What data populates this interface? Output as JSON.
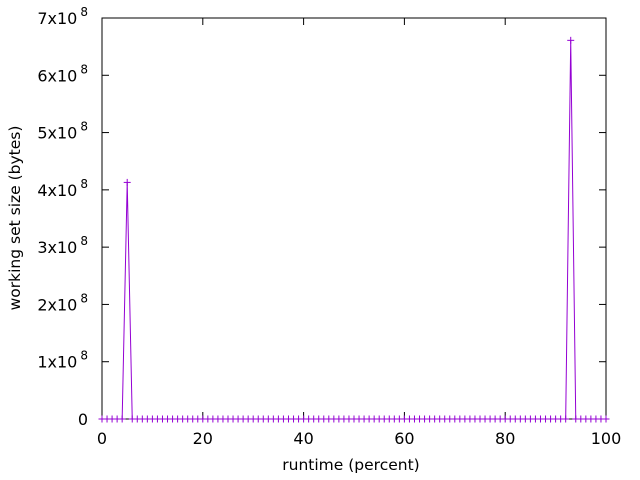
{
  "chart_data": {
    "type": "line",
    "title": "",
    "xlabel": "runtime (percent)",
    "ylabel": "working set size (bytes)",
    "xlim": [
      0,
      100
    ],
    "ylim": [
      0,
      700000000
    ],
    "x_ticks": [
      0,
      20,
      40,
      60,
      80,
      100
    ],
    "y_ticks": [
      {
        "value": 0,
        "mantissa": "0",
        "exp": ""
      },
      {
        "value": 100000000,
        "mantissa": "1x10",
        "exp": "8"
      },
      {
        "value": 200000000,
        "mantissa": "2x10",
        "exp": "8"
      },
      {
        "value": 300000000,
        "mantissa": "3x10",
        "exp": "8"
      },
      {
        "value": 400000000,
        "mantissa": "4x10",
        "exp": "8"
      },
      {
        "value": 500000000,
        "mantissa": "5x10",
        "exp": "8"
      },
      {
        "value": 600000000,
        "mantissa": "6x10",
        "exp": "8"
      },
      {
        "value": 700000000,
        "mantissa": "7x10",
        "exp": "8"
      }
    ],
    "grid": false,
    "legend": "none",
    "series": [
      {
        "color": "#9400d3",
        "marker": "plus",
        "sample_step": 1,
        "x_start": 0,
        "x_end": 100,
        "nonzero_points": [
          {
            "x": 4,
            "y": 0
          },
          {
            "x": 5,
            "y": 413000000
          },
          {
            "x": 6,
            "y": 0
          },
          {
            "x": 92,
            "y": 0
          },
          {
            "x": 93,
            "y": 661000000
          },
          {
            "x": 94,
            "y": 0
          }
        ]
      }
    ]
  }
}
